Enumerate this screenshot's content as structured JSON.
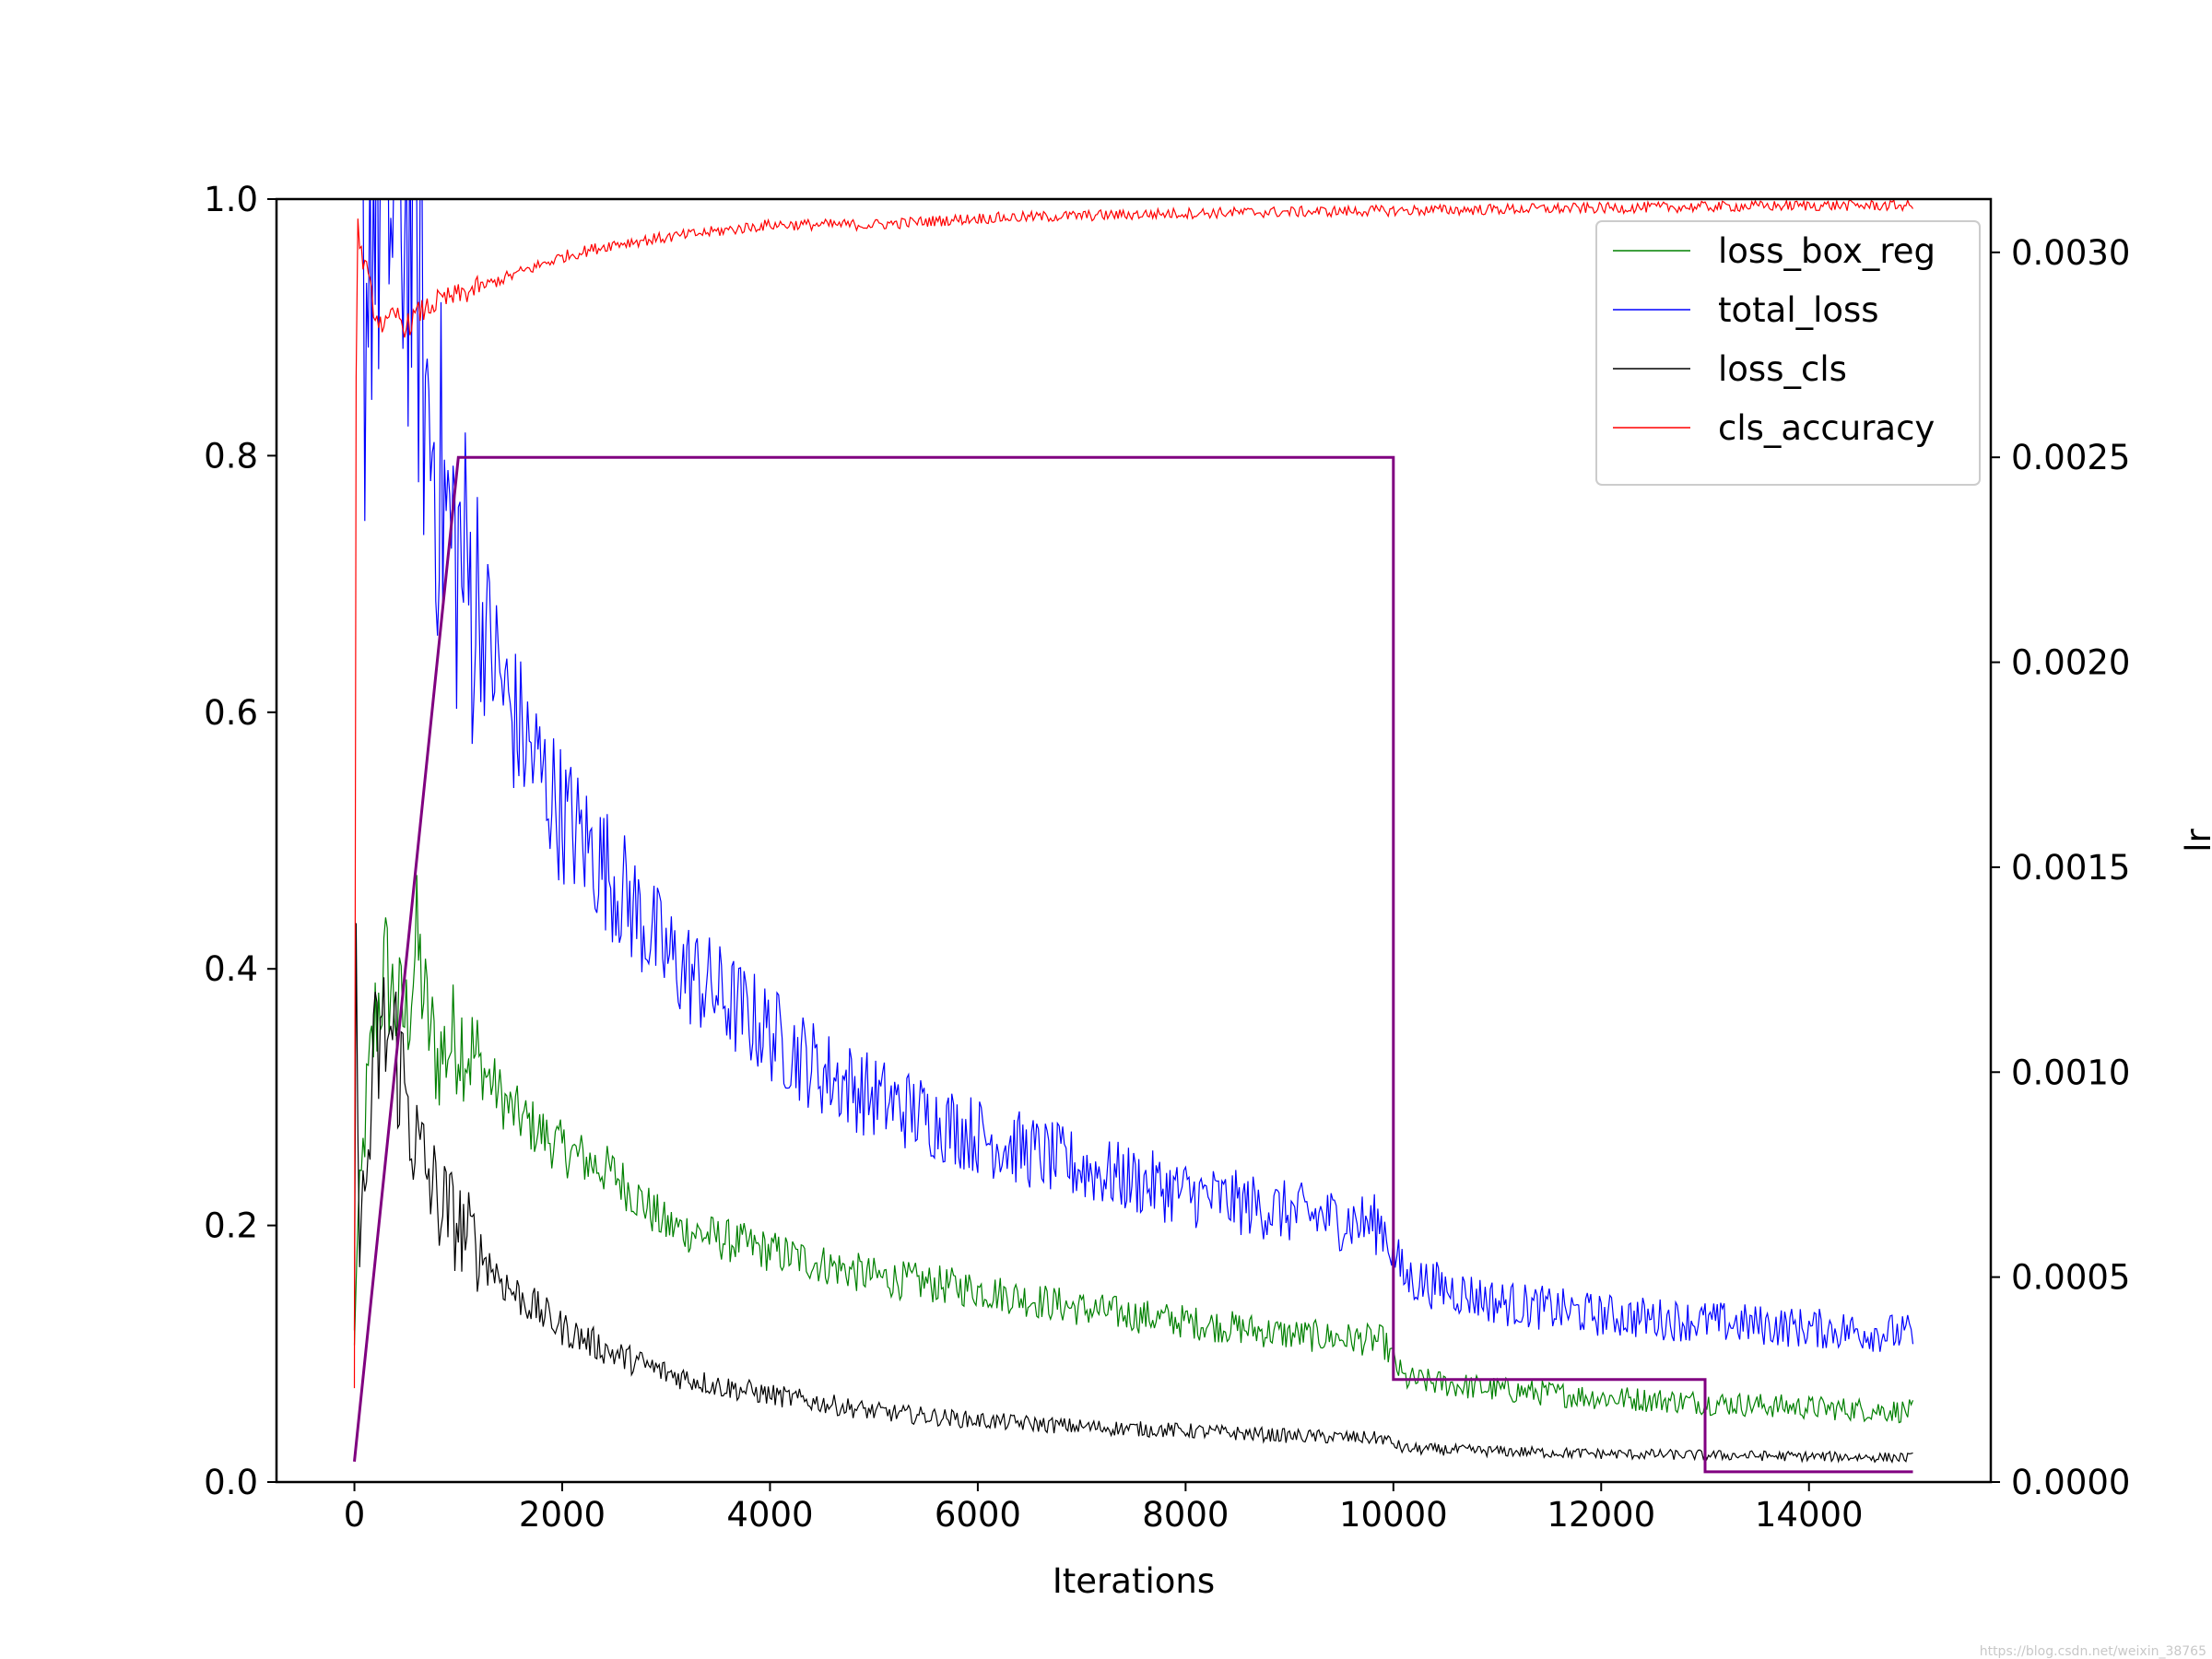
{
  "chart_data": {
    "type": "line",
    "xlabel": "Iterations",
    "ylabel": "",
    "y2label": "lr",
    "xlim": [
      -750,
      15750
    ],
    "ylim": [
      0.0,
      1.0
    ],
    "y2lim": [
      0.0,
      0.00313
    ],
    "x_ticks": [
      0,
      2000,
      4000,
      6000,
      8000,
      10000,
      12000,
      14000
    ],
    "x_tick_labels": [
      "0",
      "2000",
      "4000",
      "6000",
      "8000",
      "10000",
      "12000",
      "14000"
    ],
    "y_ticks": [
      0.0,
      0.2,
      0.4,
      0.6,
      0.8,
      1.0
    ],
    "y_tick_labels": [
      "0.0",
      "0.2",
      "0.4",
      "0.6",
      "0.8",
      "1.0"
    ],
    "y2_ticks": [
      0.0,
      0.0005,
      0.001,
      0.0015,
      0.002,
      0.0025,
      0.003
    ],
    "y2_tick_labels": [
      "0.0000",
      "0.0005",
      "0.0010",
      "0.0015",
      "0.0020",
      "0.0025",
      "0.0030"
    ],
    "grid": false,
    "legend_position": "top-right",
    "series": [
      {
        "name": "loss_box_reg",
        "color": "#008000",
        "axis": "left",
        "x": [
          0,
          20,
          60,
          100,
          200,
          300,
          400,
          500,
          600,
          700,
          800,
          1000,
          1500,
          2000,
          2500,
          3000,
          3500,
          4000,
          5000,
          6000,
          7000,
          8000,
          9000,
          9900,
          10100,
          11000,
          12000,
          13000,
          14000,
          15000
        ],
        "y": [
          0.1,
          0.18,
          0.22,
          0.28,
          0.36,
          0.4,
          0.37,
          0.36,
          0.42,
          0.36,
          0.33,
          0.35,
          0.29,
          0.26,
          0.24,
          0.2,
          0.19,
          0.18,
          0.16,
          0.15,
          0.135,
          0.125,
          0.115,
          0.11,
          0.08,
          0.072,
          0.066,
          0.062,
          0.058,
          0.055
        ]
      },
      {
        "name": "total_loss",
        "color": "#0000ff",
        "axis": "left",
        "x": [
          0,
          50,
          100,
          150,
          200,
          300,
          400,
          500,
          600,
          700,
          800,
          900,
          1000,
          1200,
          1500,
          2000,
          2500,
          3000,
          3500,
          4000,
          4500,
          5000,
          6000,
          7000,
          8000,
          9000,
          9900,
          10100,
          11000,
          12000,
          13000,
          14000,
          15000
        ],
        "y": [
          0.98,
          1.0,
          0.9,
          1.0,
          1.0,
          1.0,
          1.0,
          1.0,
          0.95,
          0.83,
          0.8,
          0.74,
          0.72,
          0.68,
          0.6,
          0.52,
          0.47,
          0.41,
          0.38,
          0.35,
          0.32,
          0.3,
          0.27,
          0.245,
          0.225,
          0.21,
          0.2,
          0.16,
          0.14,
          0.13,
          0.125,
          0.12,
          0.115
        ]
      },
      {
        "name": "loss_cls",
        "color": "#000000",
        "axis": "left",
        "x": [
          0,
          20,
          50,
          100,
          200,
          300,
          400,
          500,
          600,
          700,
          800,
          1000,
          1500,
          2000,
          2500,
          3000,
          3500,
          4000,
          5000,
          6000,
          7000,
          8000,
          9000,
          9900,
          10100,
          11000,
          12000,
          13000,
          14000,
          15000
        ],
        "y": [
          0.1,
          0.44,
          0.2,
          0.22,
          0.33,
          0.35,
          0.34,
          0.3,
          0.26,
          0.24,
          0.22,
          0.2,
          0.15,
          0.12,
          0.1,
          0.085,
          0.075,
          0.068,
          0.055,
          0.048,
          0.043,
          0.04,
          0.036,
          0.034,
          0.026,
          0.024,
          0.022,
          0.021,
          0.02,
          0.019
        ]
      },
      {
        "name": "cls_accuracy",
        "color": "#ff0000",
        "axis": "left",
        "x": [
          0,
          10,
          20,
          50,
          100,
          200,
          300,
          400,
          500,
          600,
          700,
          800,
          1000,
          1500,
          2000,
          2500,
          3000,
          3500,
          4000,
          5000,
          6000,
          7000,
          8000,
          9000,
          10000,
          11000,
          12000,
          13000,
          14000,
          15000
        ],
        "y": [
          0.1,
          0.6,
          1.0,
          0.96,
          0.95,
          0.91,
          0.9,
          0.91,
          0.9,
          0.91,
          0.915,
          0.92,
          0.925,
          0.94,
          0.955,
          0.965,
          0.97,
          0.975,
          0.98,
          0.98,
          0.985,
          0.987,
          0.989,
          0.99,
          0.991,
          0.992,
          0.993,
          0.994,
          0.995,
          0.995
        ]
      },
      {
        "name": "lr",
        "color": "#800080",
        "axis": "right",
        "x": [
          0,
          1000,
          10000,
          10000,
          13000,
          13000,
          15000
        ],
        "y": [
          5e-05,
          0.0025,
          0.0025,
          0.00025,
          0.00025,
          2.5e-05,
          2.5e-05
        ]
      }
    ]
  },
  "watermark": "https://blog.csdn.net/weixin_38765"
}
